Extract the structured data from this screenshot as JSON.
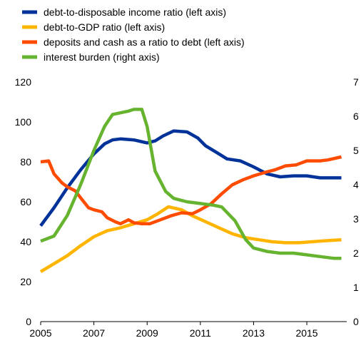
{
  "chart_data": {
    "type": "line",
    "title": "",
    "xlabel": "",
    "ylabel": "",
    "legend_position": "top",
    "grid": false,
    "x_ticks": [
      "2005",
      "2007",
      "2009",
      "2011",
      "2013",
      "2015"
    ],
    "x_range": [
      2005,
      2016.5
    ],
    "y_left": {
      "ticks": [
        "0",
        "20",
        "40",
        "60",
        "80",
        "100",
        "120"
      ],
      "range": [
        0,
        120
      ]
    },
    "y_right": {
      "ticks": [
        "0",
        "1",
        "2",
        "3",
        "4",
        "5",
        "6",
        "7"
      ],
      "range": [
        0,
        7
      ]
    },
    "series": [
      {
        "name": "debt-to-disposable income ratio (left axis)",
        "color": "#003299",
        "axis": "left",
        "points": [
          [
            2005.0,
            48
          ],
          [
            2005.5,
            57
          ],
          [
            2006.0,
            67
          ],
          [
            2006.5,
            76
          ],
          [
            2007.0,
            84
          ],
          [
            2007.4,
            89
          ],
          [
            2007.7,
            91
          ],
          [
            2008.0,
            91.5
          ],
          [
            2008.5,
            91
          ],
          [
            2009.0,
            89.5
          ],
          [
            2009.3,
            90.5
          ],
          [
            2009.6,
            93
          ],
          [
            2010.0,
            95.5
          ],
          [
            2010.5,
            95
          ],
          [
            2010.9,
            92
          ],
          [
            2011.2,
            88
          ],
          [
            2011.7,
            84
          ],
          [
            2012.0,
            81.5
          ],
          [
            2012.5,
            80.5
          ],
          [
            2013.0,
            77.5
          ],
          [
            2013.5,
            74
          ],
          [
            2014.0,
            72.5
          ],
          [
            2014.5,
            73
          ],
          [
            2015.0,
            73
          ],
          [
            2015.5,
            72
          ],
          [
            2016.0,
            72
          ],
          [
            2016.3,
            72
          ]
        ]
      },
      {
        "name": "debt-to-GDP ratio (left axis)",
        "color": "#ffb400",
        "axis": "left",
        "points": [
          [
            2005.0,
            25
          ],
          [
            2005.5,
            29
          ],
          [
            2006.0,
            33
          ],
          [
            2006.5,
            38
          ],
          [
            2007.0,
            42.5
          ],
          [
            2007.5,
            45.5
          ],
          [
            2008.0,
            47
          ],
          [
            2008.5,
            49
          ],
          [
            2009.0,
            51
          ],
          [
            2009.4,
            54
          ],
          [
            2009.8,
            57.5
          ],
          [
            2010.3,
            56
          ],
          [
            2010.7,
            53
          ],
          [
            2011.2,
            50
          ],
          [
            2011.7,
            47
          ],
          [
            2012.2,
            44
          ],
          [
            2012.7,
            42
          ],
          [
            2013.2,
            41
          ],
          [
            2013.7,
            40
          ],
          [
            2014.2,
            39.5
          ],
          [
            2014.7,
            39.5
          ],
          [
            2015.2,
            40
          ],
          [
            2015.7,
            40.5
          ],
          [
            2016.3,
            41
          ]
        ]
      },
      {
        "name": "deposits and cash as a ratio to debt (left axis)",
        "color": "#ff4b00",
        "axis": "left",
        "points": [
          [
            2005.0,
            80
          ],
          [
            2005.3,
            80.5
          ],
          [
            2005.5,
            74
          ],
          [
            2005.8,
            69.5
          ],
          [
            2006.0,
            67.5
          ],
          [
            2006.3,
            65.5
          ],
          [
            2006.5,
            62
          ],
          [
            2006.8,
            57
          ],
          [
            2007.0,
            56
          ],
          [
            2007.3,
            55
          ],
          [
            2007.5,
            52
          ],
          [
            2007.8,
            50
          ],
          [
            2008.0,
            49
          ],
          [
            2008.3,
            51
          ],
          [
            2008.5,
            49.5
          ],
          [
            2008.8,
            49
          ],
          [
            2009.1,
            49
          ],
          [
            2009.5,
            51
          ],
          [
            2009.9,
            53
          ],
          [
            2010.3,
            54.5
          ],
          [
            2010.7,
            54
          ],
          [
            2011.0,
            56
          ],
          [
            2011.4,
            59
          ],
          [
            2011.8,
            64
          ],
          [
            2012.2,
            68.5
          ],
          [
            2012.6,
            71
          ],
          [
            2013.0,
            73
          ],
          [
            2013.5,
            75
          ],
          [
            2013.8,
            76
          ],
          [
            2014.2,
            78
          ],
          [
            2014.6,
            78.5
          ],
          [
            2015.0,
            80.5
          ],
          [
            2015.5,
            80.5
          ],
          [
            2015.8,
            81
          ],
          [
            2016.3,
            82.5
          ]
        ]
      },
      {
        "name": "interest burden (right axis)",
        "color": "#65b32e",
        "axis": "right",
        "points": [
          [
            2005.0,
            2.35
          ],
          [
            2005.5,
            2.5
          ],
          [
            2006.0,
            3.1
          ],
          [
            2006.5,
            4.0
          ],
          [
            2007.0,
            5.0
          ],
          [
            2007.4,
            5.7
          ],
          [
            2007.7,
            6.05
          ],
          [
            2008.0,
            6.1
          ],
          [
            2008.3,
            6.15
          ],
          [
            2008.5,
            6.2
          ],
          [
            2008.8,
            6.2
          ],
          [
            2009.0,
            5.7
          ],
          [
            2009.3,
            4.4
          ],
          [
            2009.7,
            3.8
          ],
          [
            2010.0,
            3.6
          ],
          [
            2010.5,
            3.5
          ],
          [
            2011.0,
            3.45
          ],
          [
            2011.5,
            3.4
          ],
          [
            2011.8,
            3.35
          ],
          [
            2012.3,
            2.95
          ],
          [
            2012.7,
            2.4
          ],
          [
            2013.0,
            2.15
          ],
          [
            2013.5,
            2.05
          ],
          [
            2014.0,
            2.0
          ],
          [
            2014.5,
            2.0
          ],
          [
            2015.0,
            1.95
          ],
          [
            2015.5,
            1.9
          ],
          [
            2016.0,
            1.85
          ],
          [
            2016.3,
            1.85
          ]
        ]
      }
    ]
  }
}
